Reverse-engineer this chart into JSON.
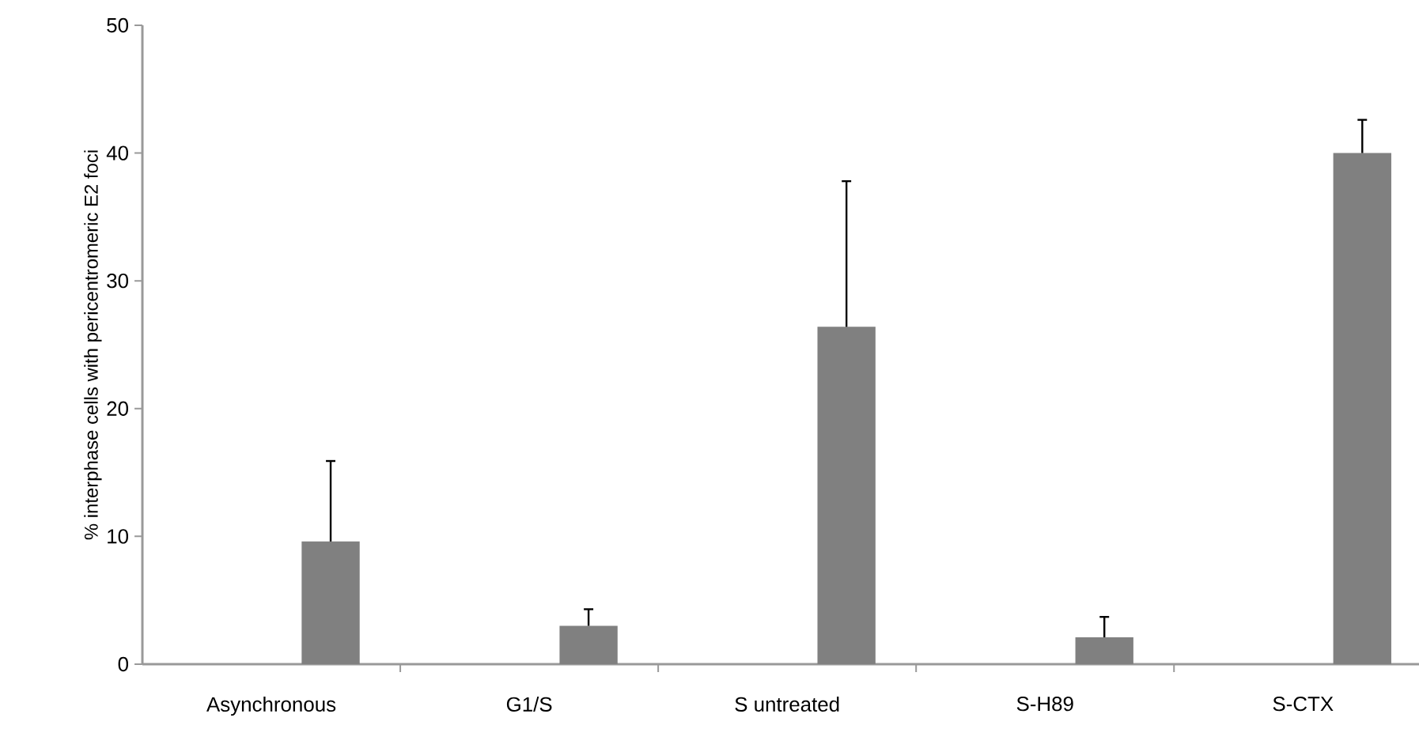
{
  "chart_data": {
    "type": "bar",
    "ylabel": "% interphase cells with pericentromeric E2 foci",
    "categories": [
      "Asynchronous",
      "G1/S",
      "S untreated",
      "S-H89",
      "S-CTX"
    ],
    "values": [
      9.6,
      3.0,
      26.4,
      2.1,
      40.0
    ],
    "errors": [
      6.3,
      1.3,
      11.4,
      1.6,
      2.6
    ],
    "color": "#808080",
    "ylim": [
      0,
      50
    ],
    "yticks": [
      0,
      10,
      20,
      30,
      40,
      50
    ],
    "grid": false
  }
}
